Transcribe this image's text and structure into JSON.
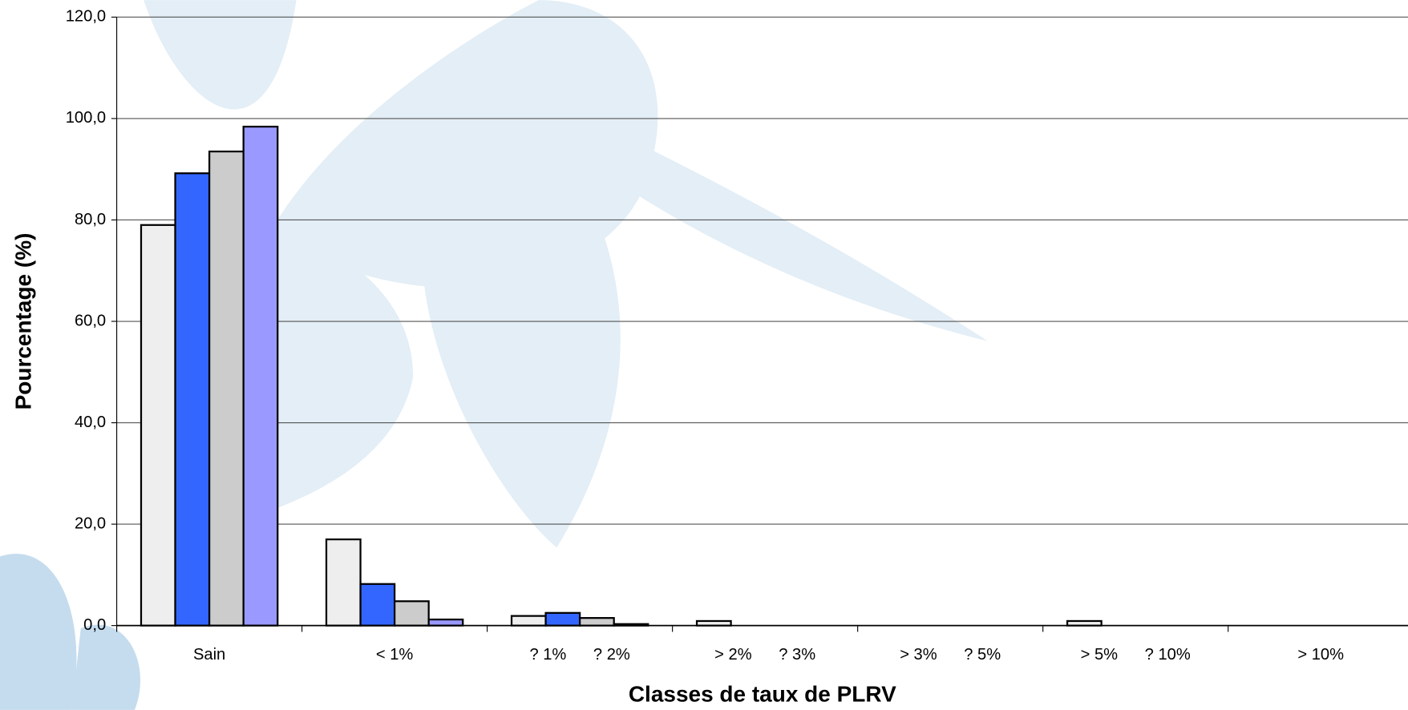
{
  "chart_data": {
    "type": "bar",
    "x_label": "Classes de taux de PLRV",
    "y_label": "Pourcentage (%)",
    "categories": [
      "Sain",
      "< 1%",
      "? 1%      ? 2%",
      "> 2%      ? 3%",
      "> 3%      ? 5%",
      "> 5%      ? 10%",
      "> 10%"
    ],
    "series": [
      {
        "color": "#eeeeee",
        "values": [
          79.0,
          17.0,
          1.9,
          0.9,
          0,
          0.9,
          0
        ]
      },
      {
        "color": "#3366ff",
        "values": [
          89.2,
          8.2,
          2.5,
          0,
          0,
          0,
          0
        ]
      },
      {
        "color": "#cccccc",
        "values": [
          93.5,
          4.8,
          1.5,
          0,
          0,
          0,
          0
        ]
      },
      {
        "color": "#9999ff",
        "values": [
          98.4,
          1.2,
          0.3,
          0,
          0,
          0,
          0
        ]
      }
    ],
    "ylim": [
      0,
      120
    ],
    "yticks": [
      {
        "value": 0,
        "label": "0,0"
      },
      {
        "value": 20,
        "label": "20,0"
      },
      {
        "value": 40,
        "label": "40,0"
      },
      {
        "value": 60,
        "label": "60,0"
      },
      {
        "value": 80,
        "label": "80,0"
      },
      {
        "value": 100,
        "label": "100,0"
      },
      {
        "value": 120,
        "label": "120,0"
      }
    ],
    "grid": true
  }
}
